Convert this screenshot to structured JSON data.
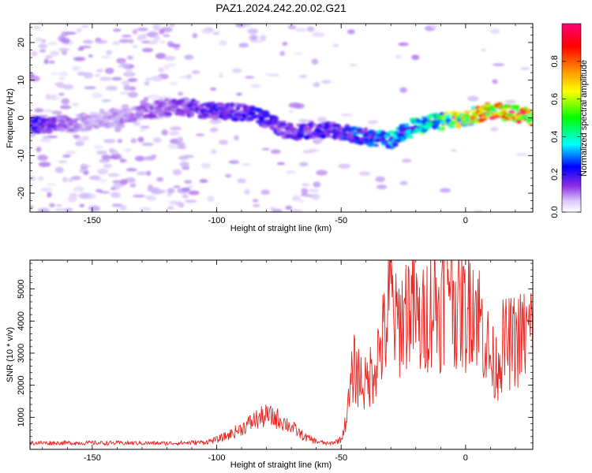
{
  "title": "PAZ1.2024.242.20.02.G21",
  "chart_data": [
    {
      "type": "heatmap",
      "xlabel": "Height of straight line (km)",
      "ylabel": "Frequency (Hz)",
      "xlim": [
        -175,
        27
      ],
      "ylim": [
        -25,
        25
      ],
      "xticks": [
        -150,
        -100,
        -50,
        0
      ],
      "yticks": [
        -20,
        -10,
        0,
        10,
        20
      ],
      "colorbar": {
        "label": "Normalized spectral amplitude",
        "range": [
          0,
          1
        ],
        "ticks": [
          "0.0",
          "0.2",
          "0.4",
          "0.6",
          "0.8"
        ],
        "tick_values": [
          0.0,
          0.2,
          0.4,
          0.6,
          0.8
        ],
        "colormap": [
          "#ffffff",
          "#cbb2f5",
          "#8a2be2",
          "#0000ff",
          "#00ffff",
          "#00ff00",
          "#ffff00",
          "#ff8800",
          "#ff0000",
          "#ff00aa"
        ]
      },
      "ridge": {
        "description_points_x": [
          -172,
          -150,
          -120,
          -100,
          -85,
          -70,
          -55,
          -40,
          -30,
          -20,
          -10,
          0,
          10,
          20,
          27
        ],
        "description_points_y": [
          -2,
          -1,
          3,
          2,
          1,
          -4,
          -3,
          -5,
          -6,
          -2,
          -1,
          0,
          2,
          1,
          0
        ],
        "amplitude": [
          0.3,
          0.12,
          0.22,
          0.3,
          0.32,
          0.28,
          0.3,
          0.38,
          0.42,
          0.45,
          0.6,
          0.7,
          0.85,
          0.9,
          0.8
        ]
      }
    },
    {
      "type": "line",
      "xlabel": "Height of straight line (km)",
      "ylabel": "SNR (10 * v/v)",
      "xlim": [
        -175,
        27
      ],
      "ylim": [
        0,
        5900
      ],
      "xticks": [
        -150,
        -100,
        -50,
        0
      ],
      "yticks": [
        1000,
        2000,
        3000,
        4000,
        5000
      ],
      "line_color": "#e8231f",
      "series": [
        {
          "x": [
            -175,
            -150,
            -120,
            -105,
            -100,
            -95,
            -90,
            -85,
            -80,
            -75,
            -70,
            -65,
            -60,
            -55,
            -50,
            -47,
            -45,
            -40,
            -35,
            -32,
            -30,
            -28,
            -25,
            -22,
            -20,
            -18,
            -15,
            -12,
            -10,
            -8,
            -6,
            -5,
            -3,
            -1,
            0,
            2,
            5,
            8,
            10,
            12,
            15,
            20,
            25,
            27
          ],
          "y": [
            200,
            200,
            190,
            220,
            300,
            450,
            650,
            900,
            1050,
            950,
            700,
            400,
            250,
            170,
            300,
            1200,
            2200,
            1700,
            2600,
            3200,
            4200,
            3300,
            3600,
            4000,
            3600,
            3200,
            3800,
            4000,
            3700,
            4400,
            5300,
            4200,
            3600,
            3900,
            3500,
            4300,
            3700,
            3000,
            2400,
            2200,
            2800,
            2900,
            3100,
            3300
          ]
        }
      ]
    }
  ]
}
